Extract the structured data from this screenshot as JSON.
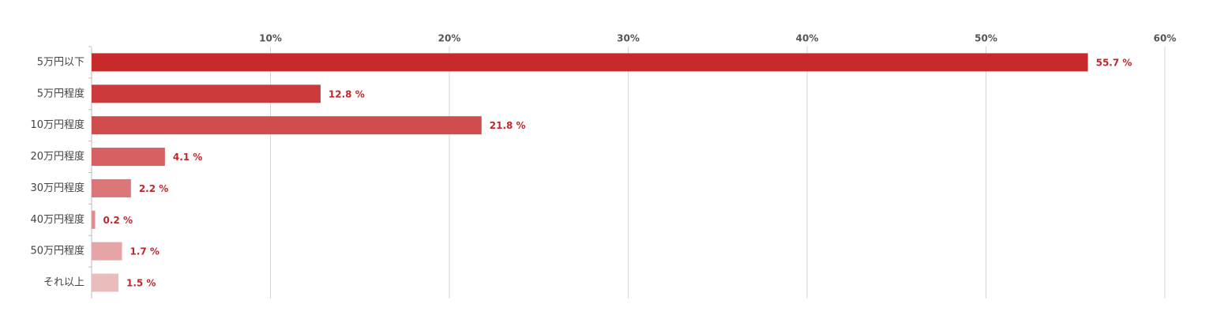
{
  "chart_data": {
    "type": "bar",
    "orientation": "horizontal",
    "categories": [
      "5万円以下",
      "5万円程度",
      "10万円程度",
      "20万円程度",
      "30万円程度",
      "40万円程度",
      "50万円程度",
      "それ以上"
    ],
    "values": [
      55.7,
      12.8,
      21.8,
      4.1,
      2.2,
      0.2,
      1.7,
      1.5
    ],
    "value_labels": [
      "55.7 %",
      "12.8 %",
      "21.8 %",
      "4.1 %",
      "2.2 %",
      "0.2 %",
      "1.7 %",
      "1.5 %"
    ],
    "colors": [
      "#c8292a",
      "#cc3a3b",
      "#d14c4d",
      "#d66162",
      "#db7778",
      "#e08d8e",
      "#e5a5a6",
      "#eabdbd"
    ],
    "xlim": [
      0,
      60
    ],
    "xticks": [
      {
        "value": 10,
        "label": "10%"
      },
      {
        "value": 20,
        "label": "20%"
      },
      {
        "value": 30,
        "label": "30%"
      },
      {
        "value": 40,
        "label": "40%"
      },
      {
        "value": 50,
        "label": "50%"
      },
      {
        "value": 60,
        "label": "60%"
      }
    ],
    "grid": true
  }
}
